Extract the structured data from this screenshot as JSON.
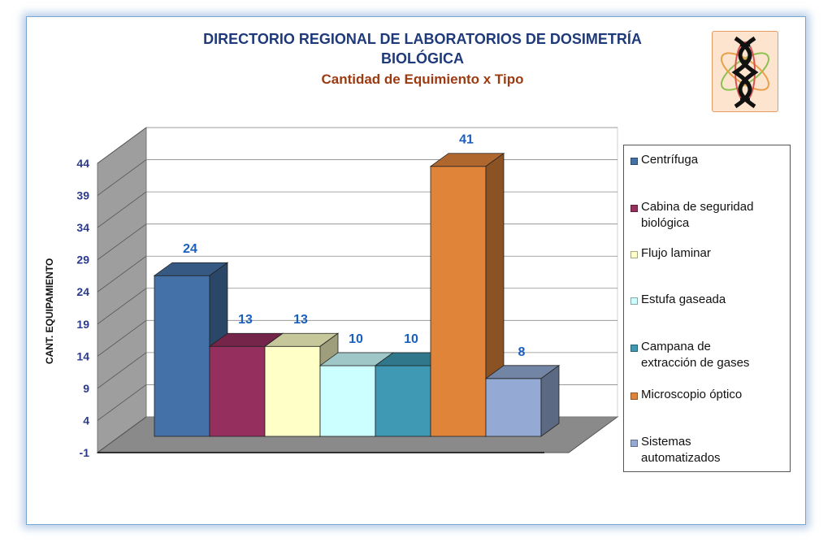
{
  "title_line1": "DIRECTORIO REGIONAL DE LABORATORIOS DE DOSIMETRÍA",
  "title_line2": "BIOLÓGICA",
  "subtitle": "Cantidad de Equimiento x Tipo",
  "logo_icon": "dna-atom-icon",
  "chart_data": {
    "type": "bar",
    "title": "DIRECTORIO REGIONAL DE LABORATORIOS DE DOSIMETRÍA BIOLÓGICA",
    "subtitle": "Cantidad de Equimiento x Tipo",
    "ylabel": "CANT. EQUIPAMIENTO",
    "xlabel": "",
    "ylim": [
      -1,
      44
    ],
    "yticks": [
      "44",
      "39",
      "34",
      "29",
      "24",
      "19",
      "14",
      "9",
      "4",
      "-1"
    ],
    "grid": true,
    "legend_position": "right",
    "three_d": true,
    "series": [
      {
        "name": "Centrífuga",
        "value": 24,
        "label": "24",
        "color": "#4472a8"
      },
      {
        "name": "Cabina de seguridad biológica",
        "value": 13,
        "label": "13",
        "color": "#95305e"
      },
      {
        "name": "Flujo laminar",
        "value": 13,
        "label": "13",
        "color": "#ffffc8"
      },
      {
        "name": "Estufa gaseada",
        "value": 10,
        "label": "10",
        "color": "#ccffff"
      },
      {
        "name": "Campana de extracción de gases",
        "value": 10,
        "label": "10",
        "color": "#3f98b4"
      },
      {
        "name": "Microscopio óptico",
        "value": 41,
        "label": "41",
        "color": "#e0843a"
      },
      {
        "name": "Sistemas automatizados",
        "value": 8,
        "label": "8",
        "color": "#94aad4"
      }
    ],
    "legend": [
      {
        "line1": "Centrífuga",
        "line2": ""
      },
      {
        "line1": "Cabina de seguridad",
        "line2": "biológica"
      },
      {
        "line1": "Flujo laminar",
        "line2": ""
      },
      {
        "line1": "Estufa gaseada",
        "line2": ""
      },
      {
        "line1": "Campana de",
        "line2": "extracción de gases"
      },
      {
        "line1": "Microscopio óptico",
        "line2": ""
      },
      {
        "line1": "Sistemas",
        "line2": "automatizados"
      }
    ],
    "colors": {
      "title": "#1f3a7a",
      "subtitle": "#9c3b12",
      "tick_labels": "#2b3a8c",
      "data_labels": "#1a5fbf",
      "wall": "#ffffff",
      "side_wall": "#9e9e9e",
      "floor": "#8a8a8a"
    }
  }
}
